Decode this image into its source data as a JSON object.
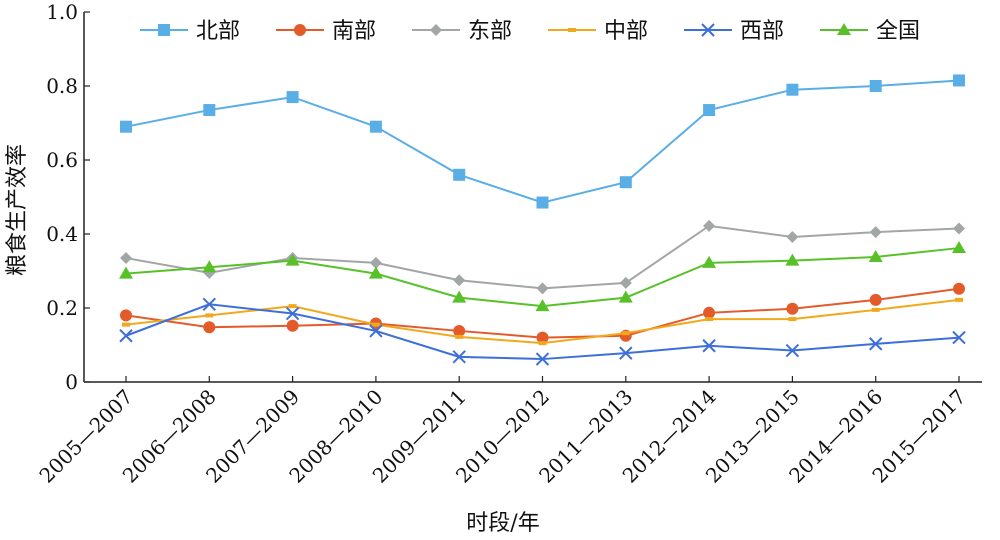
{
  "chart_data": {
    "type": "line",
    "xlabel": "时段/年",
    "ylabel": "粮食生产效率",
    "ylim": [
      0,
      1.0
    ],
    "yticks": [
      0,
      0.2,
      0.4,
      0.6,
      0.8,
      1.0
    ],
    "ytick_labels": [
      "0",
      "0.2",
      "0.4",
      "0.6",
      "0.8",
      "1.0"
    ],
    "categories": [
      "2005—2007",
      "2006—2008",
      "2007—2009",
      "2008—2010",
      "2009—2011",
      "2010—2012",
      "2011—2013",
      "2012—2014",
      "2013—2015",
      "2014—2016",
      "2015—2017"
    ],
    "legend_position": "top",
    "grid": false,
    "series": [
      {
        "name": "北部",
        "color": "#5aaee6",
        "marker": "square",
        "values": [
          0.69,
          0.735,
          0.77,
          0.69,
          0.56,
          0.485,
          0.54,
          0.735,
          0.79,
          0.8,
          0.815
        ]
      },
      {
        "name": "南部",
        "color": "#e35b2a",
        "marker": "circle",
        "values": [
          0.18,
          0.148,
          0.152,
          0.158,
          0.138,
          0.12,
          0.125,
          0.187,
          0.198,
          0.222,
          0.252
        ]
      },
      {
        "name": "东部",
        "color": "#a2a6a6",
        "marker": "diamond",
        "values": [
          0.335,
          0.295,
          0.335,
          0.322,
          0.275,
          0.253,
          0.268,
          0.422,
          0.392,
          0.405,
          0.415
        ]
      },
      {
        "name": "中部",
        "color": "#f2a81d",
        "marker": "dash",
        "values": [
          0.155,
          0.18,
          0.205,
          0.155,
          0.122,
          0.105,
          0.132,
          0.17,
          0.17,
          0.195,
          0.222
        ]
      },
      {
        "name": "西部",
        "color": "#3d6fd9",
        "marker": "x",
        "values": [
          0.125,
          0.21,
          0.185,
          0.138,
          0.068,
          0.062,
          0.078,
          0.098,
          0.085,
          0.103,
          0.12
        ]
      },
      {
        "name": "全国",
        "color": "#58c12a",
        "marker": "triangle",
        "values": [
          0.293,
          0.31,
          0.328,
          0.293,
          0.228,
          0.205,
          0.228,
          0.322,
          0.328,
          0.338,
          0.362
        ]
      }
    ]
  }
}
